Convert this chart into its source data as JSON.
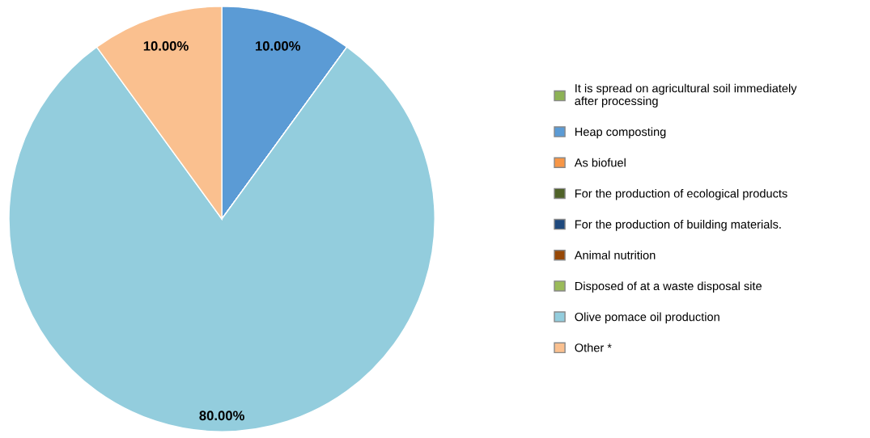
{
  "chart_data": {
    "type": "pie",
    "categories": [
      "It is spread on agricultural soil immediately\nafter processing",
      "Heap composting",
      "As biofuel",
      "For the production of ecological products",
      "For the production of building materials.",
      "Animal nutrition",
      "Disposed of at a waste disposal site",
      "Olive pomace oil production",
      "Other *"
    ],
    "values": [
      0,
      10,
      0,
      0,
      0,
      0,
      0,
      80,
      10
    ],
    "colors": [
      "#8db255",
      "#5b9bd5",
      "#f79646",
      "#4f6228",
      "#1f497d",
      "#974806",
      "#9bbb59",
      "#93cddd",
      "#fac08f"
    ],
    "value_labels": [
      null,
      "10.00%",
      null,
      null,
      null,
      null,
      null,
      "80.00%",
      "10.00%"
    ],
    "legend": "right"
  }
}
